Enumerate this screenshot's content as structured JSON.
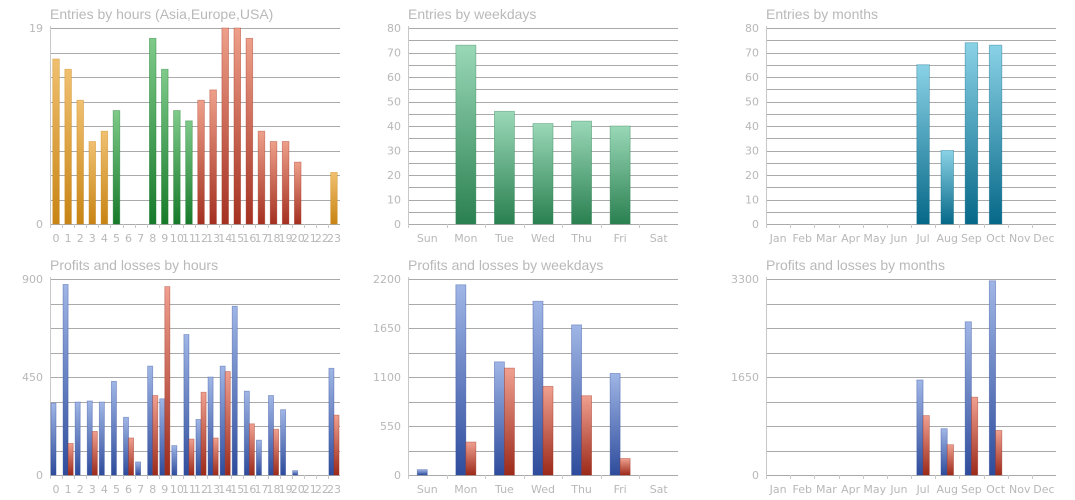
{
  "colors": {
    "orange": [
      "#f0c070",
      "#c88414"
    ],
    "green": [
      "#7fca8a",
      "#177a2a"
    ],
    "red": [
      "#eea08a",
      "#a43020"
    ],
    "teal_green": [
      "#9ad8b8",
      "#2a8050"
    ],
    "teal_blue": [
      "#8ad2e6",
      "#066888"
    ],
    "blue": [
      "#a0b6e6",
      "#2e4c9c"
    ],
    "pl_red": [
      "#f0a090",
      "#9c2a1a"
    ],
    "grid": "#aaaaaa",
    "text": "#b8b8b8"
  },
  "chart_data": [
    {
      "id": "hours_entries",
      "type": "bar",
      "title": "Entries by hours (Asia,Europe,USA)",
      "categories": [
        "0",
        "1",
        "2",
        "3",
        "4",
        "5",
        "6",
        "7",
        "8",
        "9",
        "10",
        "11",
        "12",
        "13",
        "14",
        "15",
        "16",
        "17",
        "18",
        "19",
        "20",
        "21",
        "22",
        "23"
      ],
      "values": [
        16,
        15,
        12,
        8,
        9,
        11,
        0,
        0,
        18,
        15,
        11,
        10,
        12,
        13,
        19,
        19,
        18,
        9,
        8,
        8,
        6,
        0,
        0,
        5
      ],
      "bar_colors": [
        "orange",
        "orange",
        "orange",
        "orange",
        "orange",
        "green",
        "green",
        "green",
        "green",
        "green",
        "green",
        "green",
        "red",
        "red",
        "red",
        "red",
        "red",
        "red",
        "red",
        "red",
        "red",
        "orange",
        "orange",
        "orange"
      ],
      "ylim": [
        0,
        19
      ],
      "yticks": [
        0,
        19
      ],
      "xlabel": "",
      "ylabel": "",
      "grid": true
    },
    {
      "id": "weekday_entries",
      "type": "bar",
      "title": "Entries by weekdays",
      "categories": [
        "Sun",
        "Mon",
        "Tue",
        "Wed",
        "Thu",
        "Fri",
        "Sat"
      ],
      "values": [
        0,
        73,
        46,
        41,
        42,
        40,
        0
      ],
      "color": "teal_green",
      "ylim": [
        0,
        80
      ],
      "yticks": [
        0,
        10,
        20,
        30,
        40,
        50,
        60,
        70,
        80
      ],
      "xlabel": "",
      "ylabel": "",
      "grid": true
    },
    {
      "id": "month_entries",
      "type": "bar",
      "title": "Entries by months",
      "categories": [
        "Jan",
        "Feb",
        "Mar",
        "Apr",
        "May",
        "Jun",
        "Jul",
        "Aug",
        "Sep",
        "Oct",
        "Nov",
        "Dec"
      ],
      "values": [
        0,
        0,
        0,
        0,
        0,
        0,
        65,
        30,
        74,
        73,
        0,
        0
      ],
      "color": "teal_blue",
      "ylim": [
        0,
        80
      ],
      "yticks": [
        0,
        10,
        20,
        30,
        40,
        50,
        60,
        70,
        80
      ],
      "xlabel": "",
      "ylabel": "",
      "grid": true
    },
    {
      "id": "hours_pl",
      "type": "bar",
      "title": "Profits and losses by hours",
      "categories": [
        "0",
        "1",
        "2",
        "3",
        "4",
        "5",
        "6",
        "7",
        "8",
        "9",
        "10",
        "11",
        "12",
        "13",
        "14",
        "15",
        "16",
        "17",
        "18",
        "19",
        "20",
        "21",
        "22",
        "23"
      ],
      "series": [
        {
          "color": "blue",
          "values": [
            330,
            875,
            335,
            340,
            335,
            430,
            265,
            60,
            500,
            350,
            135,
            645,
            255,
            450,
            500,
            775,
            385,
            160,
            365,
            300,
            20,
            0,
            0,
            490
          ]
        },
        {
          "color": "pl_red",
          "values": [
            0,
            145,
            0,
            200,
            0,
            0,
            170,
            0,
            365,
            865,
            0,
            165,
            380,
            170,
            475,
            0,
            235,
            0,
            210,
            0,
            0,
            0,
            0,
            275
          ]
        }
      ],
      "ylim": [
        0,
        900
      ],
      "yticks": [
        0,
        450,
        900
      ],
      "xlabel": "",
      "ylabel": "",
      "grid": true
    },
    {
      "id": "weekday_pl",
      "type": "bar",
      "title": "Profits and losses by weekdays",
      "categories": [
        "Sun",
        "Mon",
        "Tue",
        "Wed",
        "Thu",
        "Fri",
        "Sat"
      ],
      "series": [
        {
          "color": "blue",
          "values": [
            60,
            2135,
            1270,
            1950,
            1685,
            1140,
            0
          ]
        },
        {
          "color": "pl_red",
          "values": [
            0,
            370,
            1200,
            995,
            890,
            185,
            0
          ]
        }
      ],
      "ylim": [
        0,
        2200
      ],
      "yticks": [
        0,
        550,
        1100,
        1650,
        2200
      ],
      "xlabel": "",
      "ylabel": "",
      "grid": true
    },
    {
      "id": "month_pl",
      "type": "bar",
      "title": "Profits and losses by months",
      "categories": [
        "Jan",
        "Feb",
        "Mar",
        "Apr",
        "May",
        "Jun",
        "Jul",
        "Aug",
        "Sep",
        "Oct",
        "Nov",
        "Dec"
      ],
      "series": [
        {
          "color": "blue",
          "values": [
            0,
            0,
            0,
            0,
            0,
            0,
            1600,
            780,
            2580,
            3270,
            0,
            0
          ]
        },
        {
          "color": "pl_red",
          "values": [
            0,
            0,
            0,
            0,
            0,
            0,
            1000,
            510,
            1310,
            750,
            0,
            0
          ]
        }
      ],
      "ylim": [
        0,
        3300
      ],
      "yticks": [
        0,
        1650,
        3300
      ],
      "xlabel": "",
      "ylabel": "",
      "grid": true
    }
  ]
}
